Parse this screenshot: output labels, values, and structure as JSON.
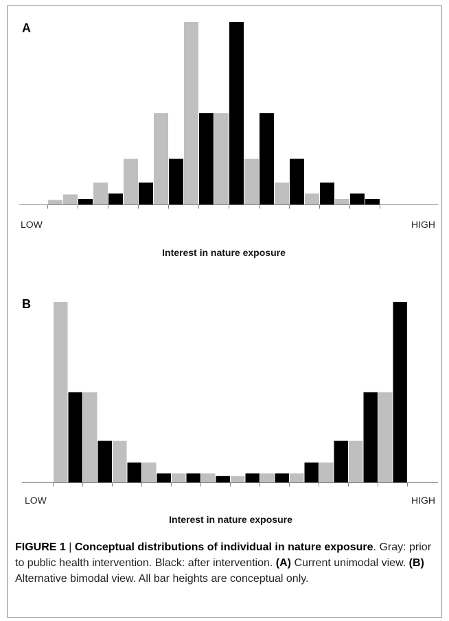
{
  "chart_data": [
    {
      "type": "bar",
      "panel": "A",
      "xlabel": "Interest in nature exposure",
      "x_low_label": "LOW",
      "x_high_label": "HIGH",
      "series_colors": {
        "gray": "#bfbfbf",
        "black": "#000000"
      },
      "bars": [
        {
          "color": "gray",
          "value": 2.5
        },
        {
          "color": "gray",
          "value": 5.5
        },
        {
          "color": "black",
          "value": 3
        },
        {
          "color": "gray",
          "value": 12
        },
        {
          "color": "black",
          "value": 6
        },
        {
          "color": "gray",
          "value": 25
        },
        {
          "color": "black",
          "value": 12
        },
        {
          "color": "gray",
          "value": 50
        },
        {
          "color": "black",
          "value": 25
        },
        {
          "color": "gray",
          "value": 100
        },
        {
          "color": "black",
          "value": 50
        },
        {
          "color": "gray",
          "value": 50
        },
        {
          "color": "black",
          "value": 100
        },
        {
          "color": "gray",
          "value": 25
        },
        {
          "color": "black",
          "value": 50
        },
        {
          "color": "gray",
          "value": 12
        },
        {
          "color": "black",
          "value": 25
        },
        {
          "color": "gray",
          "value": 6
        },
        {
          "color": "black",
          "value": 12
        },
        {
          "color": "gray",
          "value": 3
        },
        {
          "color": "black",
          "value": 6
        },
        {
          "color": "black",
          "value": 3
        }
      ],
      "ylim": [
        0,
        100
      ]
    },
    {
      "type": "bar",
      "panel": "B",
      "xlabel": "Interest in nature exposure",
      "x_low_label": "LOW",
      "x_high_label": "HIGH",
      "series_colors": {
        "gray": "#bfbfbf",
        "black": "#000000"
      },
      "bars": [
        {
          "color": "gray",
          "value": 100
        },
        {
          "color": "black",
          "value": 50
        },
        {
          "color": "gray",
          "value": 50
        },
        {
          "color": "black",
          "value": 23
        },
        {
          "color": "gray",
          "value": 23
        },
        {
          "color": "black",
          "value": 11
        },
        {
          "color": "gray",
          "value": 11
        },
        {
          "color": "black",
          "value": 5
        },
        {
          "color": "gray",
          "value": 5
        },
        {
          "color": "black",
          "value": 5
        },
        {
          "color": "gray",
          "value": 5
        },
        {
          "color": "black",
          "value": 3.5
        },
        {
          "color": "gray",
          "value": 3.5
        },
        {
          "color": "black",
          "value": 5
        },
        {
          "color": "gray",
          "value": 5
        },
        {
          "color": "black",
          "value": 5
        },
        {
          "color": "gray",
          "value": 5
        },
        {
          "color": "black",
          "value": 11
        },
        {
          "color": "gray",
          "value": 11
        },
        {
          "color": "black",
          "value": 23
        },
        {
          "color": "gray",
          "value": 23
        },
        {
          "color": "black",
          "value": 50
        },
        {
          "color": "gray",
          "value": 50
        },
        {
          "color": "black",
          "value": 100
        }
      ],
      "ylim": [
        0,
        100
      ]
    }
  ],
  "panels": {
    "a": {
      "letter": "A",
      "low": "LOW",
      "high": "HIGH",
      "axis_title": "Interest in nature exposure"
    },
    "b": {
      "letter": "B",
      "low": "LOW",
      "high": "HIGH",
      "axis_title": "Interest in nature exposure"
    }
  },
  "caption": {
    "figure_label": "FIGURE 1",
    "separator": " | ",
    "title": "Conceptual distributions of individual in nature exposure",
    "title_end": ".",
    "text_1": " Gray: prior to public health intervention. Black: after intervention. ",
    "label_a": "(A)",
    "text_2": " Current unimodal view. ",
    "label_b": "(B)",
    "text_3": " Alternative bimodal view. All bar heights are conceptual only."
  }
}
